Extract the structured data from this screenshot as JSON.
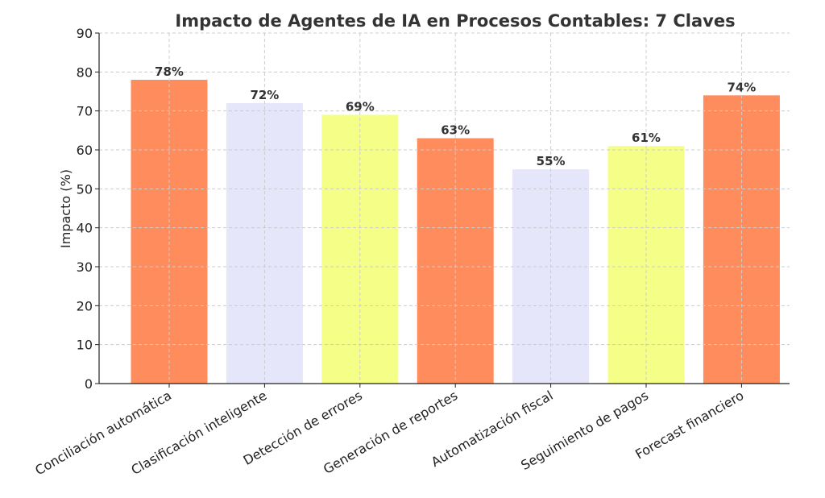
{
  "chart_data": {
    "type": "bar",
    "title": "Impacto de Agentes de IA en Procesos Contables: 7 Claves",
    "xlabel": "",
    "ylabel": "Impacto (%)",
    "ylim": [
      0,
      90
    ],
    "yticks": [
      0,
      10,
      20,
      30,
      40,
      50,
      60,
      70,
      80,
      90
    ],
    "grid": true,
    "categories": [
      "Conciliación automática",
      "Clasificación inteligente",
      "Detección de errores",
      "Generación de reportes",
      "Automatización fiscal",
      "Seguimiento de pagos",
      "Forecast financiero"
    ],
    "values": [
      78,
      72,
      69,
      63,
      55,
      61,
      74
    ],
    "data_labels": [
      "78%",
      "72%",
      "69%",
      "63%",
      "55%",
      "61%",
      "74%"
    ],
    "colors": [
      "#FF8C5C",
      "#E6E6FA",
      "#F5FF87",
      "#FF8C5C",
      "#E6E6FA",
      "#F5FF87",
      "#FF8C5C"
    ]
  }
}
